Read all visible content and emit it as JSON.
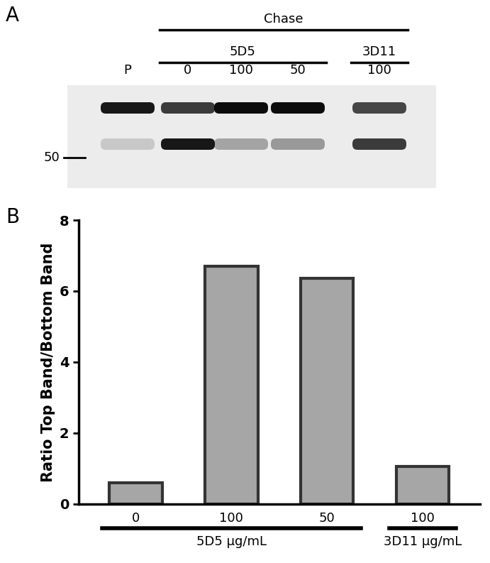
{
  "panel_labels": [
    "A",
    "B"
  ],
  "blot": {
    "header": "Chase",
    "lanes": [
      "P",
      "0",
      "100",
      "50",
      "100"
    ],
    "lane_groups": [
      null,
      "5D5",
      "5D5",
      "5D5",
      "3D11"
    ],
    "marker": "50"
  },
  "chart_data": {
    "type": "bar",
    "categories": [
      "0",
      "100",
      "50",
      "100"
    ],
    "group_labels": [
      "5D5 µg/mL",
      "5D5 µg/mL",
      "5D5 µg/mL",
      "3D11 µg/mL"
    ],
    "values": [
      0.6,
      6.7,
      6.35,
      1.05
    ],
    "color": "#a6a6a6",
    "y_label": "Ratio Top Band/Bottom Band",
    "ylim": [
      0,
      8
    ],
    "yticks": [
      0,
      2,
      4,
      6,
      8
    ]
  }
}
